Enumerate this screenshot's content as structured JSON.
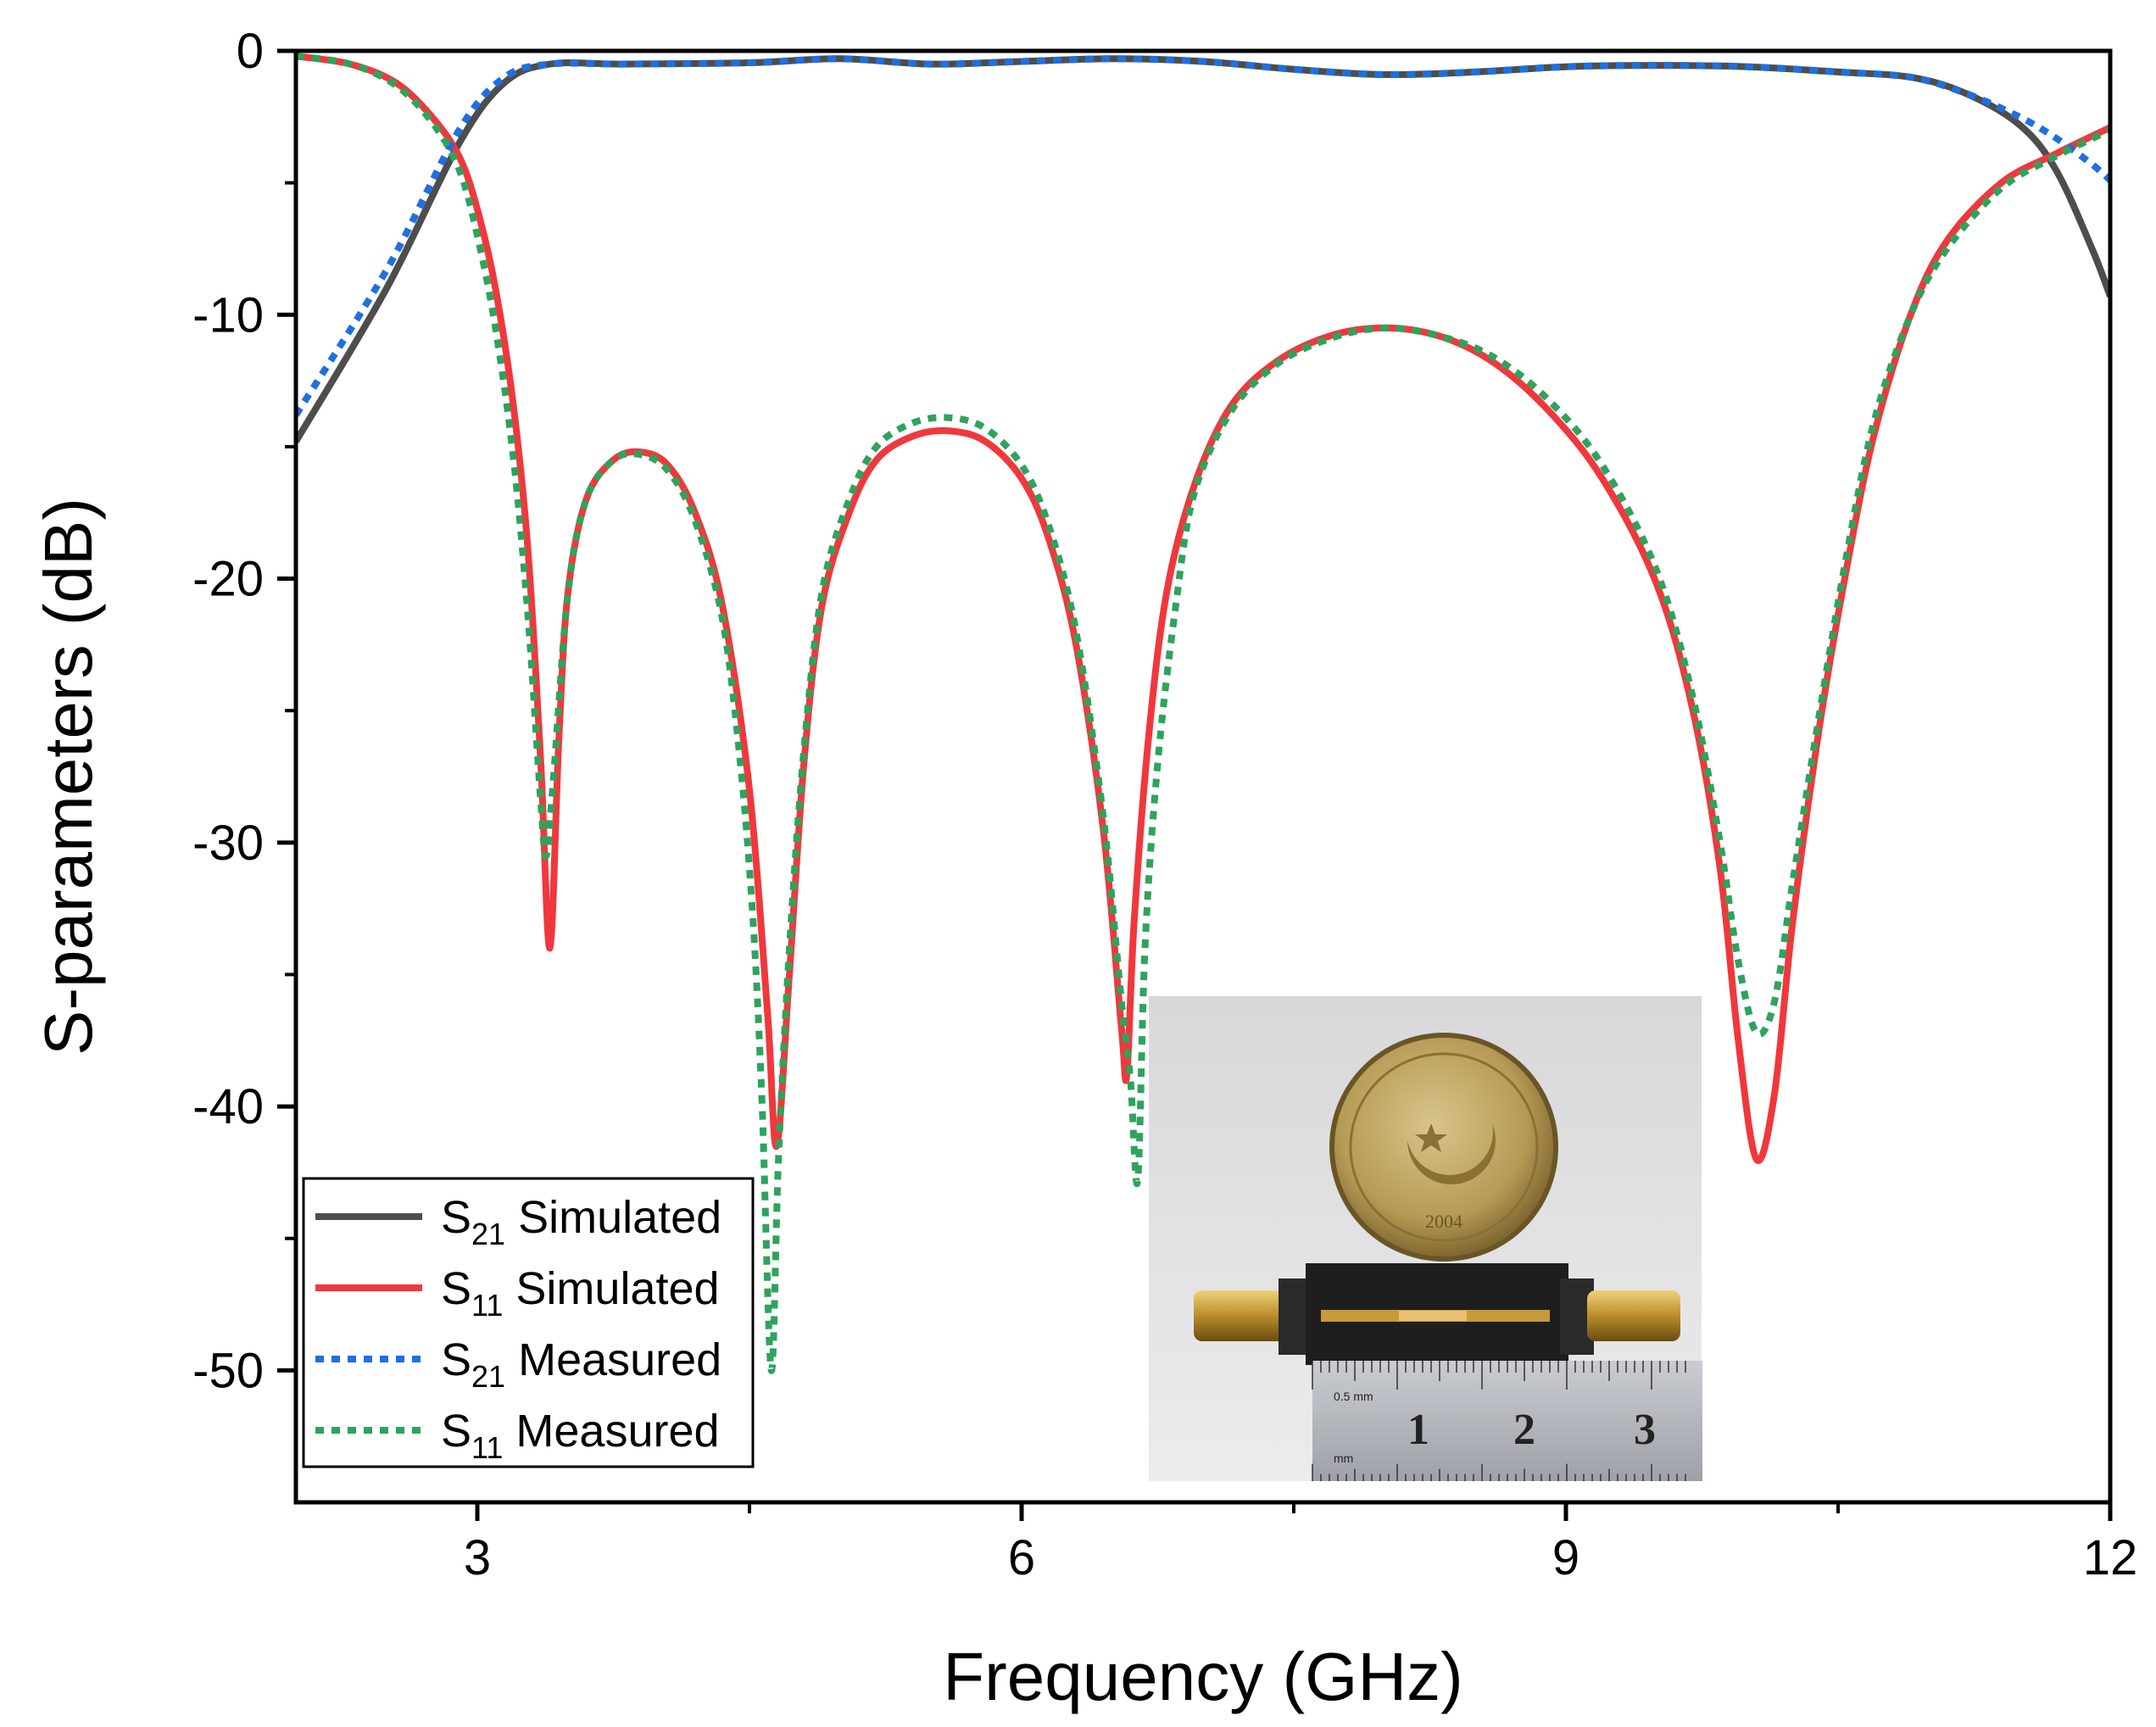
{
  "chart_data": {
    "type": "line",
    "xlabel": "Frequency (GHz)",
    "ylabel": "S-parameters (dB)",
    "xlim": [
      2,
      12
    ],
    "ylim": [
      -55,
      0
    ],
    "x_ticks": [
      3,
      6,
      9,
      12
    ],
    "x_tick_labels": [
      "3",
      "6",
      "9",
      "12"
    ],
    "x_minor_ticks": [
      4.5,
      7.5,
      10.5
    ],
    "y_ticks": [
      0,
      -10,
      -20,
      -30,
      -40,
      -50
    ],
    "y_tick_labels": [
      "0",
      "-10",
      "-20",
      "-30",
      "-40",
      "-50"
    ],
    "y_minor_ticks": [
      -5,
      -15,
      -25,
      -35,
      -45
    ],
    "legend_position": "bottom-left",
    "series": [
      {
        "name": "S21 Simulated",
        "label_main": "S",
        "label_sub": "21",
        "label_rest": " Simulated",
        "color": "#4d4d4d",
        "style": "solid",
        "points": [
          [
            2.0,
            -14.8
          ],
          [
            2.5,
            -9.0
          ],
          [
            2.9,
            -3.5
          ],
          [
            3.15,
            -1.2
          ],
          [
            3.4,
            -0.5
          ],
          [
            3.8,
            -0.5
          ],
          [
            4.5,
            -0.45
          ],
          [
            5.0,
            -0.3
          ],
          [
            5.5,
            -0.5
          ],
          [
            6.0,
            -0.4
          ],
          [
            6.5,
            -0.3
          ],
          [
            7.0,
            -0.4
          ],
          [
            7.5,
            -0.7
          ],
          [
            8.0,
            -0.9
          ],
          [
            8.5,
            -0.8
          ],
          [
            9.0,
            -0.6
          ],
          [
            9.5,
            -0.55
          ],
          [
            10.0,
            -0.6
          ],
          [
            10.5,
            -0.8
          ],
          [
            10.9,
            -1.0
          ],
          [
            11.2,
            -1.6
          ],
          [
            11.5,
            -2.8
          ],
          [
            11.7,
            -4.5
          ],
          [
            11.9,
            -7.5
          ],
          [
            12.0,
            -9.3
          ]
        ]
      },
      {
        "name": "S11 Simulated",
        "label_main": "S",
        "label_sub": "11",
        "label_rest": " Simulated",
        "color": "#f0383c",
        "style": "solid",
        "points": [
          [
            2.0,
            -0.2
          ],
          [
            2.3,
            -0.5
          ],
          [
            2.55,
            -1.2
          ],
          [
            2.75,
            -2.5
          ],
          [
            2.9,
            -4.0
          ],
          [
            3.0,
            -6.0
          ],
          [
            3.1,
            -9.0
          ],
          [
            3.2,
            -13.5
          ],
          [
            3.28,
            -19.0
          ],
          [
            3.35,
            -27.0
          ],
          [
            3.4,
            -34.0
          ],
          [
            3.45,
            -26.0
          ],
          [
            3.5,
            -20.5
          ],
          [
            3.6,
            -17.0
          ],
          [
            3.75,
            -15.5
          ],
          [
            3.9,
            -15.2
          ],
          [
            4.05,
            -15.7
          ],
          [
            4.2,
            -17.5
          ],
          [
            4.35,
            -21.0
          ],
          [
            4.5,
            -28.0
          ],
          [
            4.6,
            -36.5
          ],
          [
            4.65,
            -41.5
          ],
          [
            4.72,
            -35.0
          ],
          [
            4.8,
            -27.0
          ],
          [
            4.9,
            -21.0
          ],
          [
            5.05,
            -17.5
          ],
          [
            5.2,
            -15.5
          ],
          [
            5.4,
            -14.6
          ],
          [
            5.6,
            -14.4
          ],
          [
            5.8,
            -14.8
          ],
          [
            6.0,
            -16.2
          ],
          [
            6.15,
            -18.5
          ],
          [
            6.3,
            -22.5
          ],
          [
            6.45,
            -29.5
          ],
          [
            6.55,
            -37.0
          ],
          [
            6.58,
            -38.8
          ],
          [
            6.62,
            -33.0
          ],
          [
            6.7,
            -26.0
          ],
          [
            6.8,
            -20.5
          ],
          [
            6.95,
            -16.5
          ],
          [
            7.15,
            -13.5
          ],
          [
            7.4,
            -11.8
          ],
          [
            7.7,
            -10.8
          ],
          [
            8.0,
            -10.5
          ],
          [
            8.3,
            -10.8
          ],
          [
            8.6,
            -11.8
          ],
          [
            8.9,
            -13.6
          ],
          [
            9.2,
            -16.2
          ],
          [
            9.5,
            -20.2
          ],
          [
            9.7,
            -25.0
          ],
          [
            9.85,
            -31.0
          ],
          [
            9.95,
            -37.5
          ],
          [
            10.05,
            -42.0
          ],
          [
            10.15,
            -39.5
          ],
          [
            10.25,
            -33.0
          ],
          [
            10.4,
            -25.5
          ],
          [
            10.55,
            -19.5
          ],
          [
            10.7,
            -14.5
          ],
          [
            10.9,
            -10.0
          ],
          [
            11.1,
            -7.2
          ],
          [
            11.4,
            -5.0
          ],
          [
            11.7,
            -3.9
          ],
          [
            12.0,
            -2.9
          ]
        ]
      },
      {
        "name": "S21 Measured",
        "label_main": "S",
        "label_sub": "21",
        "label_rest": " Measured",
        "color": "#1f6fe0",
        "style": "dotted",
        "points": [
          [
            2.0,
            -13.8
          ],
          [
            2.5,
            -8.3
          ],
          [
            2.9,
            -3.0
          ],
          [
            3.15,
            -1.0
          ],
          [
            3.4,
            -0.5
          ],
          [
            3.8,
            -0.5
          ],
          [
            4.5,
            -0.45
          ],
          [
            5.0,
            -0.3
          ],
          [
            5.5,
            -0.5
          ],
          [
            6.0,
            -0.4
          ],
          [
            6.5,
            -0.3
          ],
          [
            7.0,
            -0.4
          ],
          [
            7.5,
            -0.7
          ],
          [
            8.0,
            -0.9
          ],
          [
            8.5,
            -0.8
          ],
          [
            9.0,
            -0.6
          ],
          [
            9.5,
            -0.55
          ],
          [
            10.0,
            -0.6
          ],
          [
            10.5,
            -0.8
          ],
          [
            10.9,
            -1.0
          ],
          [
            11.2,
            -1.6
          ],
          [
            11.5,
            -2.5
          ],
          [
            11.7,
            -3.3
          ],
          [
            11.9,
            -4.3
          ],
          [
            12.0,
            -4.9
          ]
        ]
      },
      {
        "name": "S11 Measured",
        "label_main": "S",
        "label_sub": "11",
        "label_rest": " Measured",
        "color": "#2ea35c",
        "style": "dotted",
        "points": [
          [
            2.0,
            -0.2
          ],
          [
            2.3,
            -0.5
          ],
          [
            2.55,
            -1.3
          ],
          [
            2.75,
            -2.7
          ],
          [
            2.9,
            -4.5
          ],
          [
            3.0,
            -7.0
          ],
          [
            3.1,
            -10.5
          ],
          [
            3.2,
            -15.5
          ],
          [
            3.28,
            -21.5
          ],
          [
            3.35,
            -28.5
          ],
          [
            3.38,
            -30.5
          ],
          [
            3.42,
            -27.5
          ],
          [
            3.5,
            -20.5
          ],
          [
            3.6,
            -17.0
          ],
          [
            3.75,
            -15.5
          ],
          [
            3.9,
            -15.3
          ],
          [
            4.05,
            -15.9
          ],
          [
            4.2,
            -17.8
          ],
          [
            4.35,
            -21.5
          ],
          [
            4.45,
            -27.0
          ],
          [
            4.52,
            -33.0
          ],
          [
            4.57,
            -40.0
          ],
          [
            4.62,
            -50.0
          ],
          [
            4.66,
            -42.0
          ],
          [
            4.72,
            -34.0
          ],
          [
            4.8,
            -26.5
          ],
          [
            4.9,
            -20.5
          ],
          [
            5.05,
            -17.0
          ],
          [
            5.2,
            -15.0
          ],
          [
            5.4,
            -14.1
          ],
          [
            5.6,
            -13.9
          ],
          [
            5.8,
            -14.3
          ],
          [
            6.0,
            -15.7
          ],
          [
            6.15,
            -18.0
          ],
          [
            6.3,
            -22.0
          ],
          [
            6.45,
            -29.0
          ],
          [
            6.55,
            -36.0
          ],
          [
            6.6,
            -39.0
          ],
          [
            6.64,
            -42.8
          ],
          [
            6.68,
            -34.0
          ],
          [
            6.75,
            -27.0
          ],
          [
            6.85,
            -21.0
          ],
          [
            6.95,
            -16.8
          ],
          [
            7.15,
            -13.7
          ],
          [
            7.4,
            -11.9
          ],
          [
            7.7,
            -10.9
          ],
          [
            8.0,
            -10.5
          ],
          [
            8.3,
            -10.8
          ],
          [
            8.6,
            -11.6
          ],
          [
            8.9,
            -13.2
          ],
          [
            9.2,
            -15.7
          ],
          [
            9.5,
            -19.7
          ],
          [
            9.7,
            -24.5
          ],
          [
            9.85,
            -30.0
          ],
          [
            9.95,
            -34.5
          ],
          [
            10.05,
            -37.2
          ],
          [
            10.15,
            -36.0
          ],
          [
            10.25,
            -31.5
          ],
          [
            10.4,
            -25.0
          ],
          [
            10.55,
            -19.0
          ],
          [
            10.7,
            -14.0
          ],
          [
            10.9,
            -10.0
          ],
          [
            11.1,
            -7.5
          ],
          [
            11.4,
            -5.2
          ],
          [
            11.7,
            -4.0
          ],
          [
            12.0,
            -3.0
          ]
        ]
      }
    ]
  },
  "inset_photo": {
    "ruler_numbers": [
      "1",
      "2",
      "3"
    ],
    "ruler_unit_top": "0.5 mm",
    "ruler_unit_bottom": "mm",
    "coin_year": "2004"
  }
}
